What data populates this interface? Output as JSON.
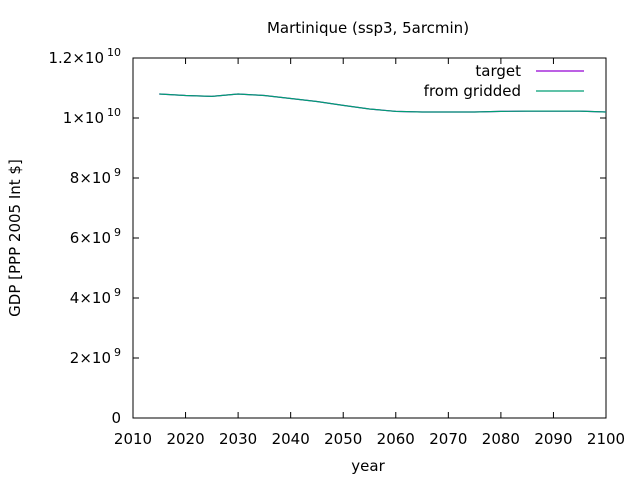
{
  "chart_data": {
    "type": "line",
    "title": "Martinique (ssp3, 5arcmin)",
    "xlabel": "year",
    "ylabel": "GDP [PPP 2005 Int $]",
    "xlim": [
      2010,
      2100
    ],
    "ylim": [
      0,
      12000000000
    ],
    "xticks": [
      2010,
      2020,
      2030,
      2040,
      2050,
      2060,
      2070,
      2080,
      2090,
      2100
    ],
    "xtick_labels": [
      "2010",
      "2020",
      "2030",
      "2040",
      "2050",
      "2060",
      "2070",
      "2080",
      "2090",
      "2100"
    ],
    "yticks": [
      {
        "value": 0,
        "base": "0",
        "exp": ""
      },
      {
        "value": 2000000000,
        "base": "2×10",
        "exp": "9"
      },
      {
        "value": 4000000000,
        "base": "4×10",
        "exp": "9"
      },
      {
        "value": 6000000000,
        "base": "6×10",
        "exp": "9"
      },
      {
        "value": 8000000000,
        "base": "8×10",
        "exp": "9"
      },
      {
        "value": 10000000000,
        "base": "1×10",
        "exp": "10"
      },
      {
        "value": 12000000000,
        "base": "1.2×10",
        "exp": "10"
      }
    ],
    "legend_position": "top-right",
    "grid": false,
    "series": [
      {
        "name": "target",
        "color": "#9400d3",
        "x": [
          2015,
          2020,
          2025,
          2030,
          2035,
          2040,
          2045,
          2050,
          2055,
          2060,
          2065,
          2070,
          2075,
          2080,
          2085,
          2090,
          2095,
          2100
        ],
        "y": [
          10800000000,
          10750000000,
          10720000000,
          10800000000,
          10750000000,
          10650000000,
          10550000000,
          10420000000,
          10300000000,
          10220000000,
          10200000000,
          10200000000,
          10200000000,
          10220000000,
          10230000000,
          10230000000,
          10230000000,
          10200000000
        ]
      },
      {
        "name": "from gridded",
        "color": "#009e73",
        "x": [
          2015,
          2020,
          2025,
          2030,
          2035,
          2040,
          2045,
          2050,
          2055,
          2060,
          2065,
          2070,
          2075,
          2080,
          2085,
          2090,
          2095,
          2100
        ],
        "y": [
          10800000000,
          10750000000,
          10720000000,
          10800000000,
          10750000000,
          10650000000,
          10550000000,
          10420000000,
          10300000000,
          10220000000,
          10200000000,
          10200000000,
          10200000000,
          10220000000,
          10230000000,
          10230000000,
          10230000000,
          10200000000
        ]
      }
    ]
  }
}
